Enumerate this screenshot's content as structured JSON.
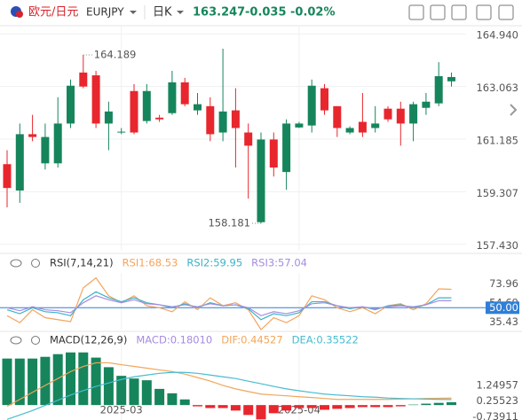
{
  "header": {
    "title": "欧元/日元",
    "symbol": "EURJPY",
    "period": "日K",
    "price": "163.247",
    "change": "-0.035",
    "change_pct": "-0.02%"
  },
  "chart_data": [
    {
      "type": "candlestick",
      "up_color": "#e8262d",
      "down_color": "#16855c",
      "grid": true,
      "open": [
        159.44,
        161.36,
        161.26,
        161.26,
        161.74,
        163.09,
        163.06,
        161.74,
        162.17,
        161.45,
        161.42,
        162.9,
        161.89,
        163.21,
        162.43,
        162.43,
        161.36,
        162.17,
        161.58,
        160.95,
        161.17,
        160.17,
        161.74,
        161.74,
        163.09,
        162.21,
        161.58,
        161.58,
        161.42,
        161.74,
        161.89,
        161.74,
        162.43,
        162.52,
        163.43,
        163.4
      ],
      "high": [
        160.79,
        161.74,
        162.05,
        161.74,
        162.68,
        163.31,
        164.189,
        163.62,
        162.52,
        161.58,
        163.15,
        163.15,
        162.05,
        163.62,
        163.37,
        162.83,
        162.68,
        164.41,
        163.0,
        161.74,
        161.42,
        161.42,
        161.89,
        161.8,
        163.31,
        163.15,
        162.36,
        161.64,
        162.83,
        162.36,
        162.36,
        162.52,
        162.52,
        162.83,
        163.93,
        163.56
      ],
      "low": [
        158.75,
        158.91,
        161.11,
        160.1,
        160.17,
        161.58,
        163.0,
        161.58,
        160.79,
        161.36,
        161.36,
        161.74,
        161.8,
        162.05,
        162.36,
        162.05,
        161.11,
        161.11,
        160.17,
        159.06,
        158.181,
        159.85,
        159.38,
        161.58,
        161.42,
        162.05,
        161.26,
        161.36,
        161.26,
        161.42,
        161.8,
        160.95,
        161.11,
        162.05,
        162.36,
        163.06
      ],
      "close": [
        160.29,
        159.35,
        161.36,
        160.32,
        160.32,
        161.74,
        163.56,
        163.46,
        161.74,
        161.42,
        162.9,
        161.83,
        161.95,
        162.11,
        163.21,
        162.21,
        162.36,
        161.42,
        162.21,
        161.42,
        158.22,
        161.17,
        160.01,
        161.6,
        161.67,
        163.0,
        162.36,
        161.42,
        161.8,
        161.58,
        162.27,
        162.27,
        161.74,
        162.3,
        162.46,
        163.247
      ],
      "ylim": [
        157.2,
        165.2
      ],
      "yticks": [
        {
          "value": 164.94,
          "label": "164.940"
        },
        163.063,
        161.185,
        159.307,
        {
          "value": 157.43,
          "label": "157.430"
        }
      ],
      "xticks": [
        {
          "value": 9,
          "label": "2025-03"
        },
        {
          "value": 23,
          "label": "2025-04"
        }
      ],
      "annotations": [
        {
          "value": 164.189,
          "label": "164.189"
        },
        {
          "value": 158.181,
          "label": "158.181"
        }
      ]
    },
    {
      "type": "line",
      "title": "RSI(7,14,21)",
      "ylim": [
        28,
        85
      ],
      "yticks": [
        73.96,
        54.69,
        {
          "value": 50,
          "label": "50.00"
        },
        35.43
      ],
      "reference": {
        "value": 50,
        "color": "#2f7fd8"
      },
      "series": [
        {
          "name": "RSI1:68.53",
          "color": "#f5a35c",
          "values": [
            42,
            35,
            48,
            40,
            38,
            36,
            70,
            80,
            62,
            55,
            62,
            52,
            50,
            46,
            56,
            48,
            60,
            52,
            55,
            48,
            28,
            40,
            35,
            42,
            62,
            58,
            50,
            46,
            50,
            44,
            52,
            54,
            48,
            54,
            69,
            68.53
          ]
        },
        {
          "name": "RSI2:59.95",
          "color": "#3ab3c8",
          "values": [
            48,
            44,
            50,
            46,
            45,
            42,
            58,
            66,
            60,
            56,
            60,
            55,
            53,
            50,
            54,
            50,
            55,
            52,
            53,
            49,
            38,
            44,
            42,
            45,
            56,
            56,
            52,
            49,
            51,
            48,
            52,
            53,
            50,
            53,
            60,
            59.95
          ]
        },
        {
          "name": "RSI3:57.04",
          "color": "#a68be0",
          "values": [
            50,
            47,
            51,
            48,
            47,
            45,
            55,
            62,
            58,
            55,
            58,
            54,
            53,
            51,
            53,
            51,
            54,
            52,
            53,
            50,
            42,
            46,
            44,
            47,
            54,
            55,
            52,
            50,
            51,
            49,
            51,
            52,
            51,
            53,
            57,
            57.04
          ]
        }
      ]
    },
    {
      "type": "macd",
      "title": "MACD(12,26,9)",
      "ylim": [
        -0.95,
        4.35
      ],
      "yticks": [
        1.24957,
        0.25523,
        -0.73911
      ],
      "series": [
        {
          "name": "MACD:0.18010",
          "color": "#a68be0",
          "up_color": "#16855c",
          "down_color": "#e8262d",
          "values": [
            2.96,
            2.96,
            2.96,
            3.07,
            3.24,
            3.35,
            3.35,
            3.02,
            2.41,
            1.86,
            1.69,
            1.58,
            1.03,
            0.75,
            0.36,
            -0.08,
            -0.19,
            -0.19,
            -0.35,
            -0.63,
            -0.91,
            -0.52,
            -0.35,
            -0.19,
            -0.19,
            -0.3,
            -0.24,
            -0.19,
            -0.13,
            -0.13,
            -0.13,
            -0.08,
            0.03,
            0.09,
            0.14,
            0.1801
          ]
        },
        {
          "name": "DIF:0.44527",
          "color": "#f2a65a",
          "values": [
            -0.08,
            0.36,
            0.81,
            1.25,
            1.69,
            2.13,
            2.46,
            2.69,
            2.69,
            2.57,
            2.46,
            2.35,
            2.24,
            2.13,
            1.97,
            1.75,
            1.53,
            1.25,
            1.03,
            0.86,
            0.7,
            0.64,
            0.59,
            0.53,
            0.48,
            0.42,
            0.36,
            0.36,
            0.36,
            0.36,
            0.36,
            0.38,
            0.4,
            0.42,
            0.43,
            0.44527
          ]
        },
        {
          "name": "DEA:0.35522",
          "color": "#48bcd1",
          "values": [
            -0.91,
            -0.63,
            -0.35,
            -0.02,
            0.31,
            0.64,
            0.92,
            1.19,
            1.41,
            1.63,
            1.8,
            1.91,
            2.02,
            2.08,
            2.08,
            2.02,
            1.91,
            1.8,
            1.69,
            1.52,
            1.36,
            1.19,
            1.03,
            0.91,
            0.8,
            0.7,
            0.64,
            0.59,
            0.53,
            0.5,
            0.45,
            0.42,
            0.4,
            0.38,
            0.36,
            0.35522
          ]
        }
      ]
    }
  ]
}
